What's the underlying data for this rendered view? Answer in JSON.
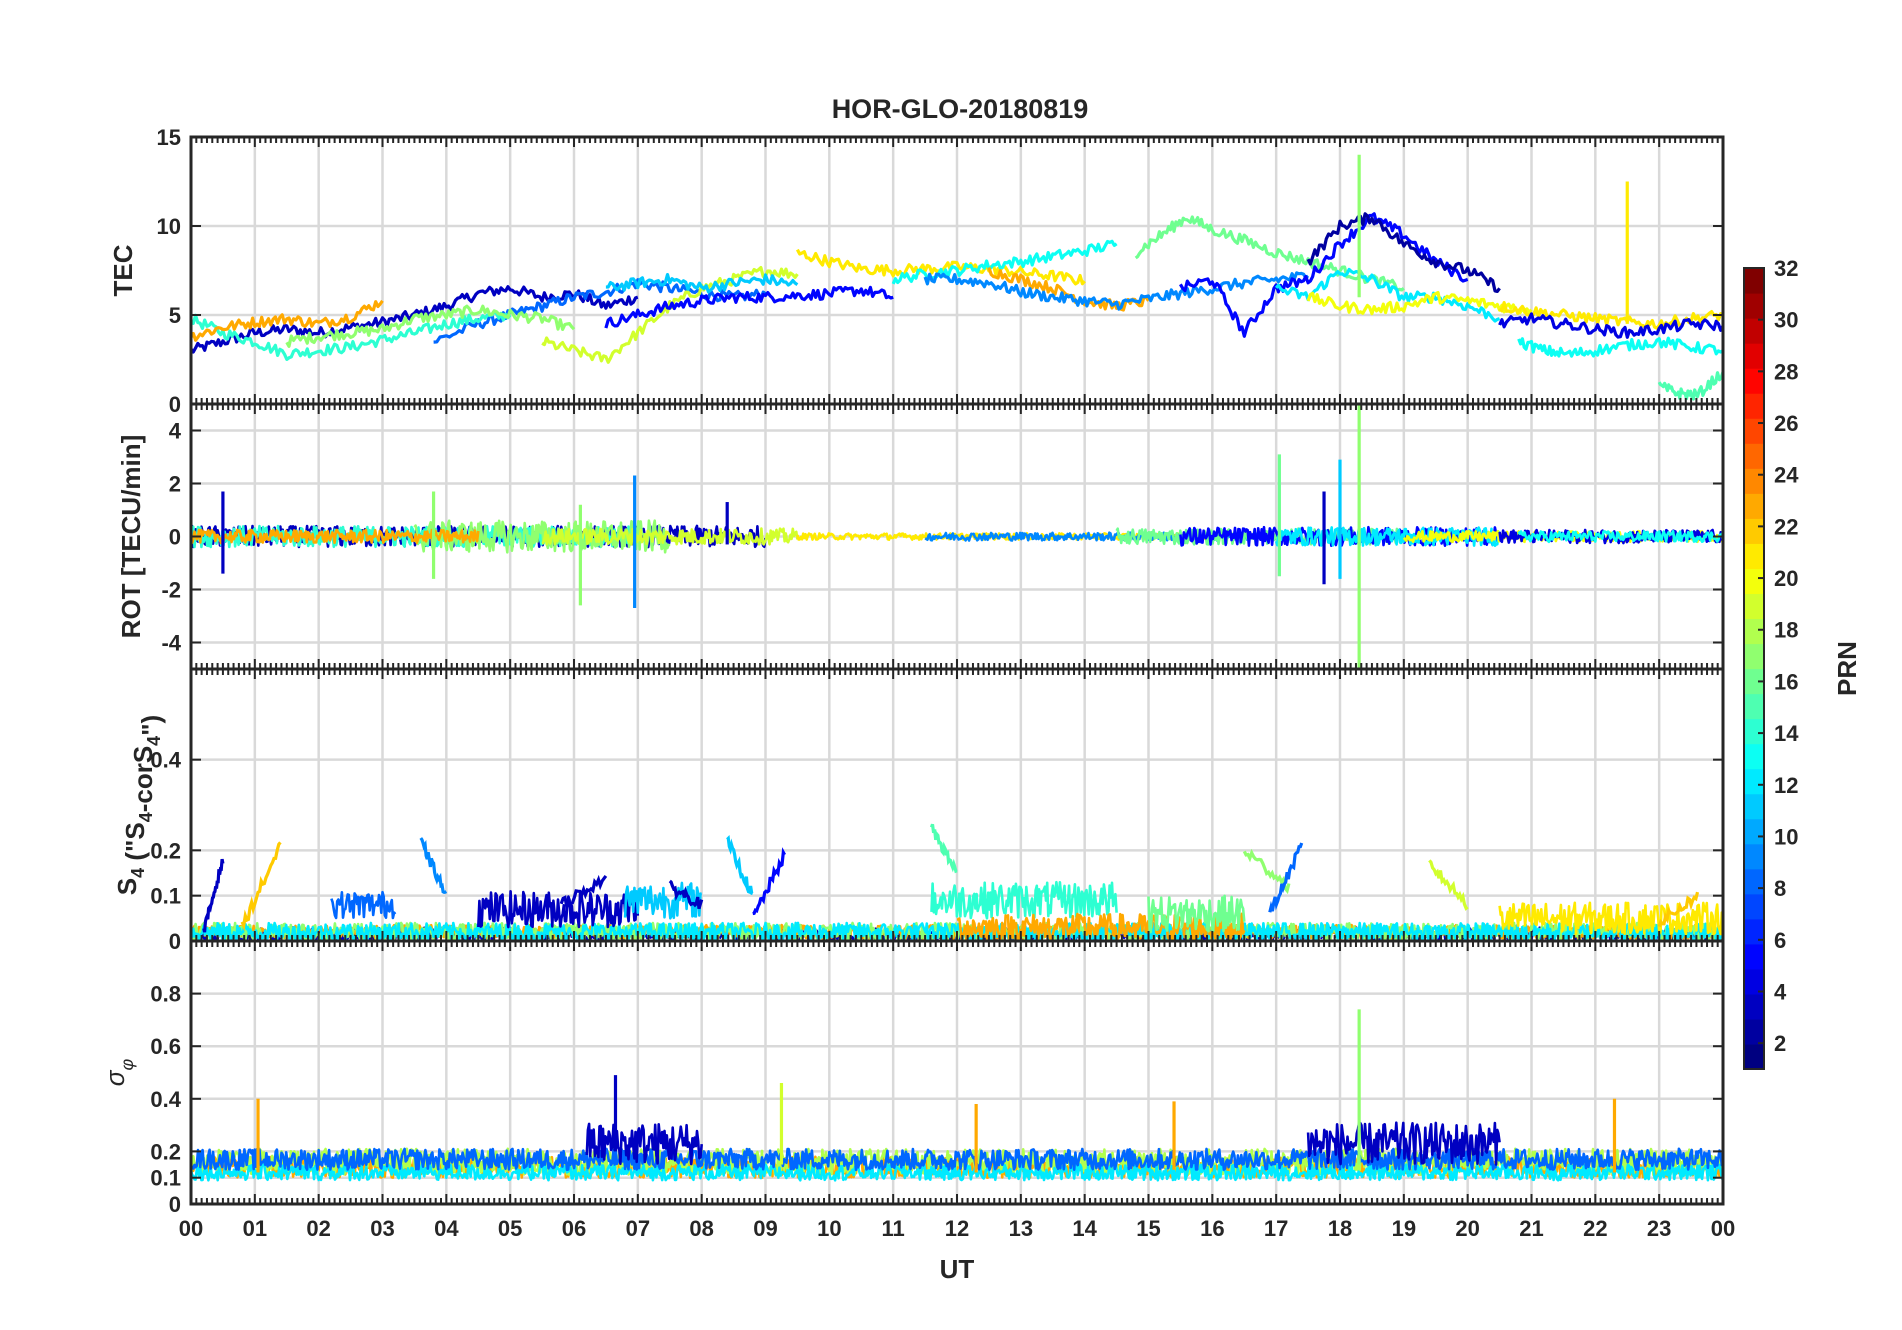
{
  "chart_data": [
    {
      "type": "line",
      "title": "HOR-GLO-20180819",
      "ylabel": "TEC",
      "xlim": [
        0,
        24
      ],
      "ylim": [
        0,
        15
      ],
      "yticks": [
        0,
        5,
        10,
        15
      ],
      "grid": true,
      "series": [
        {
          "prn": 3,
          "x": [
            0,
            0.5,
            1,
            1.5,
            2,
            2.5,
            3,
            3.5,
            4,
            4.5,
            5,
            5.5,
            6,
            6.5,
            7
          ],
          "y": [
            3.0,
            3.5,
            4.0,
            4.2,
            4.0,
            4.3,
            4.6,
            5.0,
            5.5,
            6.2,
            6.5,
            6.0,
            6.2,
            5.5,
            6.0
          ]
        },
        {
          "prn": 8,
          "x": [
            3.8,
            4.5,
            5,
            5.5,
            6,
            6.5,
            7,
            7.5,
            8,
            8.5,
            9
          ],
          "y": [
            3.5,
            4.5,
            5.0,
            5.5,
            6.0,
            6.3,
            6.8,
            6.5,
            6.2,
            6.0,
            6.2
          ]
        },
        {
          "prn": 14,
          "x": [
            0,
            0.5,
            1,
            1.5,
            2,
            2.5,
            3,
            3.5,
            4,
            4.5,
            5
          ],
          "y": [
            4.8,
            4.0,
            3.5,
            2.8,
            3.0,
            3.2,
            3.6,
            4.0,
            4.5,
            4.8,
            5.0
          ]
        },
        {
          "prn": 17,
          "x": [
            1.5,
            2,
            2.5,
            3,
            3.5,
            4,
            4.5,
            5,
            5.5,
            6
          ],
          "y": [
            3.5,
            3.8,
            4.0,
            4.2,
            4.8,
            5.0,
            5.3,
            5.0,
            4.8,
            4.2
          ]
        },
        {
          "prn": 19,
          "x": [
            5.5,
            6,
            6.5,
            7,
            7.5,
            8,
            8.5,
            9,
            9.5
          ],
          "y": [
            3.5,
            3.0,
            2.5,
            4.0,
            5.5,
            6.5,
            7.0,
            7.5,
            7.3
          ]
        },
        {
          "prn": 23,
          "x": [
            0,
            0.5,
            1,
            1.5,
            2,
            2.5,
            3
          ],
          "y": [
            3.8,
            4.3,
            4.6,
            4.8,
            4.5,
            4.9,
            5.8
          ]
        },
        {
          "prn": 5,
          "x": [
            6.5,
            7,
            7.5,
            8,
            8.5,
            9,
            9.5,
            10,
            10.5,
            11
          ],
          "y": [
            4.5,
            5.0,
            5.5,
            5.8,
            6.0,
            6.0,
            6.1,
            6.2,
            6.4,
            6.0
          ]
        },
        {
          "prn": 11,
          "x": [
            6.5,
            7,
            7.5,
            8,
            8.5,
            9,
            9.5
          ],
          "y": [
            6.5,
            6.8,
            7.0,
            6.5,
            6.8,
            7.0,
            6.7
          ]
        },
        {
          "prn": 21,
          "x": [
            9.5,
            10,
            10.5,
            11,
            11.5,
            12,
            12.5,
            13,
            13.5,
            14
          ],
          "y": [
            8.5,
            8.0,
            7.6,
            7.5,
            7.6,
            7.7,
            7.6,
            7.4,
            7.2,
            6.9
          ]
        },
        {
          "prn": 13,
          "x": [
            11,
            11.5,
            12,
            12.5,
            13,
            13.5,
            14,
            14.5
          ],
          "y": [
            7.0,
            7.3,
            7.5,
            7.8,
            8.0,
            8.3,
            8.6,
            9.0
          ]
        },
        {
          "prn": 23,
          "x": [
            12.5,
            13,
            13.5,
            14,
            14.5,
            15
          ],
          "y": [
            7.5,
            7.0,
            6.5,
            5.8,
            5.5,
            5.8
          ]
        },
        {
          "prn": 9,
          "x": [
            11.5,
            12,
            12.5,
            13,
            13.5,
            14,
            14.5,
            15,
            15.5,
            16,
            16.5,
            17,
            17.5
          ],
          "y": [
            7.0,
            7.0,
            6.8,
            6.3,
            6.0,
            5.8,
            5.6,
            5.9,
            6.2,
            6.5,
            6.8,
            7.0,
            7.2
          ]
        },
        {
          "prn": 16,
          "x": [
            14.8,
            15.2,
            15.6,
            16,
            16.5,
            17,
            17.5,
            18,
            18.5,
            19
          ],
          "y": [
            8.5,
            9.5,
            10.5,
            9.8,
            9.2,
            8.5,
            8.0,
            7.5,
            7.0,
            6.5
          ]
        },
        {
          "prn": 5,
          "x": [
            15.5,
            16,
            16.5,
            17,
            17.5,
            18,
            18.5,
            19,
            19.5,
            20
          ],
          "y": [
            6.5,
            7.0,
            4.0,
            6.5,
            7.0,
            9.0,
            10.5,
            9.5,
            8.0,
            7.0
          ]
        },
        {
          "prn": 2,
          "x": [
            17.5,
            18,
            18.5,
            19,
            19.5,
            20,
            20.5
          ],
          "y": [
            8.0,
            10.0,
            10.5,
            9.0,
            8.0,
            7.5,
            6.5
          ]
        },
        {
          "prn": 12,
          "x": [
            17,
            17.5,
            18,
            18.5,
            19,
            19.5,
            20,
            20.5
          ],
          "y": [
            6.5,
            6.0,
            7.5,
            7.0,
            6.0,
            6.0,
            5.5,
            4.8
          ]
        },
        {
          "prn": 20,
          "x": [
            17.5,
            18,
            18.5,
            19,
            19.5,
            20,
            20.5,
            21
          ],
          "y": [
            6.0,
            5.5,
            5.3,
            5.5,
            6.0,
            5.8,
            5.5,
            5.3
          ]
        },
        {
          "prn": 21,
          "x": [
            20.5,
            21,
            21.5,
            22,
            22.5,
            23,
            23.5,
            24
          ],
          "y": [
            5.5,
            5.2,
            5.0,
            4.8,
            4.6,
            4.5,
            4.8,
            5.0
          ]
        },
        {
          "prn": 4,
          "x": [
            20.5,
            21,
            21.5,
            22,
            22.5,
            23,
            23.5,
            24
          ],
          "y": [
            4.5,
            4.8,
            4.5,
            4.2,
            4.0,
            4.2,
            4.5,
            4.4
          ]
        },
        {
          "prn": 13,
          "x": [
            20.8,
            21.2,
            21.6,
            22,
            22.5,
            23,
            23.5,
            24
          ],
          "y": [
            3.5,
            3.0,
            2.8,
            3.0,
            3.3,
            3.5,
            3.2,
            3.0
          ]
        },
        {
          "prn": 15,
          "x": [
            23,
            23.3,
            23.6,
            24
          ],
          "y": [
            1.0,
            0.6,
            0.5,
            1.8
          ]
        }
      ],
      "spikes": [
        {
          "prn": 17,
          "x": 18.3,
          "from": 6,
          "to": 14
        },
        {
          "prn": 21,
          "x": 22.5,
          "from": 4.5,
          "to": 12.5
        }
      ]
    },
    {
      "type": "line",
      "ylabel": "ROT [TECU/min]",
      "xlim": [
        0,
        24
      ],
      "ylim": [
        -5,
        5
      ],
      "yticks": [
        -4,
        -2,
        0,
        2,
        4
      ],
      "grid": true,
      "noise_segments": [
        {
          "prn": 3,
          "from": 0,
          "to": 9,
          "amp": 0.4
        },
        {
          "prn": 14,
          "from": 0,
          "to": 7,
          "amp": 0.4
        },
        {
          "prn": 17,
          "from": 3.5,
          "to": 7.5,
          "amp": 0.6
        },
        {
          "prn": 23,
          "from": 0,
          "to": 4.5,
          "amp": 0.25
        },
        {
          "prn": 19,
          "from": 5.5,
          "to": 9.5,
          "amp": 0.3
        },
        {
          "prn": 21,
          "from": 9.5,
          "to": 16,
          "amp": 0.12
        },
        {
          "prn": 9,
          "from": 11.5,
          "to": 17,
          "amp": 0.15
        },
        {
          "prn": 16,
          "from": 14.5,
          "to": 19,
          "amp": 0.3
        },
        {
          "prn": 5,
          "from": 15.5,
          "to": 20.5,
          "amp": 0.35
        },
        {
          "prn": 12,
          "from": 17,
          "to": 20.5,
          "amp": 0.35
        },
        {
          "prn": 20,
          "from": 19,
          "to": 24,
          "amp": 0.2
        },
        {
          "prn": 4,
          "from": 20.5,
          "to": 24,
          "amp": 0.25
        },
        {
          "prn": 13,
          "from": 20.8,
          "to": 24,
          "amp": 0.2
        }
      ],
      "spikes": [
        {
          "prn": 3,
          "x": 0.5,
          "from": -1.4,
          "to": 1.7
        },
        {
          "prn": 17,
          "x": 3.8,
          "from": -1.6,
          "to": 1.7
        },
        {
          "prn": 17,
          "x": 6.1,
          "from": -2.6,
          "to": 1.2
        },
        {
          "prn": 9,
          "x": 6.95,
          "from": -2.7,
          "to": 2.3
        },
        {
          "prn": 3,
          "x": 8.4,
          "from": -0.3,
          "to": 1.3
        },
        {
          "prn": 16,
          "x": 17.05,
          "from": -1.5,
          "to": 3.1
        },
        {
          "prn": 3,
          "x": 17.75,
          "from": -1.8,
          "to": 1.7
        },
        {
          "prn": 11,
          "x": 18.0,
          "from": -1.6,
          "to": 2.9
        },
        {
          "prn": 17,
          "x": 18.3,
          "from": -5,
          "to": 5
        }
      ]
    },
    {
      "type": "line",
      "ylabel": "S4 (\"S4-corS4\")",
      "xlim": [
        0,
        24
      ],
      "ylim": [
        0,
        0.6
      ],
      "yticks": [
        0,
        0.1,
        0.2,
        0.4
      ],
      "grid": true,
      "noise_segments": [
        {
          "prn": 3,
          "from": 0,
          "to": 24,
          "base": 0.015,
          "amp": 0.015
        },
        {
          "prn": 23,
          "from": 0,
          "to": 24,
          "base": 0.02,
          "amp": 0.015
        },
        {
          "prn": 17,
          "from": 0,
          "to": 24,
          "base": 0.02,
          "amp": 0.02
        },
        {
          "prn": 12,
          "from": 0,
          "to": 24,
          "base": 0.02,
          "amp": 0.02
        },
        {
          "prn": 8,
          "from": 2.2,
          "to": 3.2,
          "base": 0.08,
          "amp": 0.03
        },
        {
          "prn": 3,
          "from": 4.5,
          "to": 7,
          "base": 0.07,
          "amp": 0.04
        },
        {
          "prn": 11,
          "from": 6.8,
          "to": 8,
          "base": 0.09,
          "amp": 0.04
        },
        {
          "prn": 14,
          "from": 11.6,
          "to": 14.5,
          "base": 0.09,
          "amp": 0.04
        },
        {
          "prn": 23,
          "from": 12,
          "to": 16.5,
          "base": 0.03,
          "amp": 0.03
        },
        {
          "prn": 16,
          "from": 15,
          "to": 16.5,
          "base": 0.06,
          "amp": 0.04
        },
        {
          "prn": 21,
          "from": 20.5,
          "to": 24,
          "base": 0.05,
          "amp": 0.035
        }
      ],
      "ramps": [
        {
          "prn": 3,
          "x": [
            0.2,
            0.5
          ],
          "y": [
            0.02,
            0.18
          ]
        },
        {
          "prn": 22,
          "x": [
            0.8,
            1.4
          ],
          "y": [
            0.03,
            0.21
          ]
        },
        {
          "prn": 9,
          "x": [
            3.6,
            4.0
          ],
          "y": [
            0.22,
            0.1
          ]
        },
        {
          "prn": 3,
          "x": [
            5.8,
            6.5
          ],
          "y": [
            0.08,
            0.14
          ]
        },
        {
          "prn": 3,
          "x": [
            7.5,
            8.0
          ],
          "y": [
            0.12,
            0.08
          ]
        },
        {
          "prn": 11,
          "x": [
            8.4,
            8.8
          ],
          "y": [
            0.22,
            0.1
          ]
        },
        {
          "prn": 5,
          "x": [
            8.8,
            9.3
          ],
          "y": [
            0.05,
            0.19
          ]
        },
        {
          "prn": 15,
          "x": [
            11.6,
            12.0
          ],
          "y": [
            0.25,
            0.15
          ]
        },
        {
          "prn": 17,
          "x": [
            16.5,
            17.2
          ],
          "y": [
            0.2,
            0.12
          ]
        },
        {
          "prn": 8,
          "x": [
            16.9,
            17.4
          ],
          "y": [
            0.06,
            0.21
          ]
        },
        {
          "prn": 19,
          "x": [
            19.4,
            20.0
          ],
          "y": [
            0.17,
            0.08
          ]
        },
        {
          "prn": 22,
          "x": [
            23.0,
            23.6
          ],
          "y": [
            0.04,
            0.1
          ]
        }
      ]
    },
    {
      "type": "line",
      "ylabel": "σφ",
      "xlabel": "UT",
      "xlim": [
        0,
        24
      ],
      "ylim": [
        0,
        1
      ],
      "yticks": [
        0,
        0.1,
        0.2,
        0.4,
        0.6,
        0.8
      ],
      "xticklabels": [
        "00",
        "01",
        "02",
        "03",
        "04",
        "05",
        "06",
        "07",
        "08",
        "09",
        "10",
        "11",
        "12",
        "13",
        "14",
        "15",
        "16",
        "17",
        "18",
        "19",
        "20",
        "21",
        "22",
        "23",
        "00"
      ],
      "grid": true,
      "noise_segments": [
        {
          "prn": 23,
          "from": 0,
          "to": 24,
          "base": 0.14,
          "amp": 0.04
        },
        {
          "prn": 18,
          "from": 0,
          "to": 24,
          "base": 0.16,
          "amp": 0.05
        },
        {
          "prn": 12,
          "from": 0,
          "to": 24,
          "base": 0.12,
          "amp": 0.03
        },
        {
          "prn": 8,
          "from": 0,
          "to": 24,
          "base": 0.17,
          "amp": 0.04
        },
        {
          "prn": 3,
          "from": 6.2,
          "to": 8.0,
          "base": 0.23,
          "amp": 0.08
        },
        {
          "prn": 3,
          "from": 17.5,
          "to": 20.5,
          "base": 0.23,
          "amp": 0.08
        }
      ],
      "spikes": [
        {
          "prn": 23,
          "x": 1.05,
          "from": 0.12,
          "to": 0.4
        },
        {
          "prn": 3,
          "x": 6.65,
          "from": 0.2,
          "to": 0.49
        },
        {
          "prn": 19,
          "x": 9.25,
          "from": 0.15,
          "to": 0.46
        },
        {
          "prn": 23,
          "x": 12.3,
          "from": 0.12,
          "to": 0.38
        },
        {
          "prn": 23,
          "x": 15.4,
          "from": 0.13,
          "to": 0.39
        },
        {
          "prn": 17,
          "x": 18.3,
          "from": 0.15,
          "to": 0.74
        },
        {
          "prn": 23,
          "x": 22.3,
          "from": 0.12,
          "to": 0.4
        }
      ]
    }
  ],
  "colorbar": {
    "label": "PRN",
    "range": [
      1,
      32
    ],
    "ticks": [
      2,
      4,
      6,
      8,
      10,
      12,
      14,
      16,
      18,
      20,
      22,
      24,
      26,
      28,
      30,
      32
    ],
    "colormap": "jet"
  }
}
